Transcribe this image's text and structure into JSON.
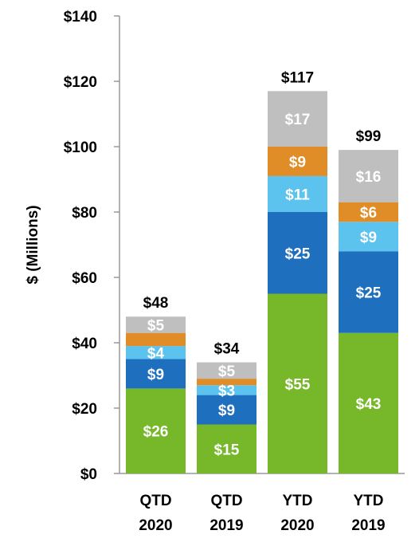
{
  "chart_data": {
    "type": "bar",
    "stacked": true,
    "ylabel": "$ (Millions)",
    "ylim": [
      0,
      140
    ],
    "yticks": [
      "$0",
      "$20",
      "$40",
      "$60",
      "$80",
      "$100",
      "$120",
      "$140"
    ],
    "categories": [
      [
        "QTD",
        "2020"
      ],
      [
        "QTD",
        "2019"
      ],
      [
        "YTD",
        "2020"
      ],
      [
        "YTD",
        "2019"
      ]
    ],
    "totals": [
      48,
      34,
      117,
      99
    ],
    "total_labels": [
      "$48",
      "$34",
      "$117",
      "$99"
    ],
    "series": [
      {
        "color": "#76b82a",
        "values": [
          26,
          15,
          55,
          43
        ],
        "labels": [
          "$26",
          "$15",
          "$55",
          "$43"
        ]
      },
      {
        "color": "#1f6fbf",
        "values": [
          9,
          9,
          25,
          25
        ],
        "labels": [
          "$9",
          "$9",
          "$25",
          "$25"
        ]
      },
      {
        "color": "#5cc3ee",
        "values": [
          4,
          3,
          11,
          9
        ],
        "labels": [
          "$4",
          "$3",
          "$11",
          "$9"
        ]
      },
      {
        "color": "#e08c27",
        "values": [
          4,
          2,
          9,
          6
        ],
        "labels": [
          "",
          "",
          "$9",
          "$6"
        ]
      },
      {
        "color": "#bfbfbf",
        "values": [
          5,
          5,
          17,
          16
        ],
        "labels": [
          "$5",
          "$5",
          "$17",
          "$16"
        ]
      }
    ],
    "grid": false,
    "legend": "none"
  }
}
